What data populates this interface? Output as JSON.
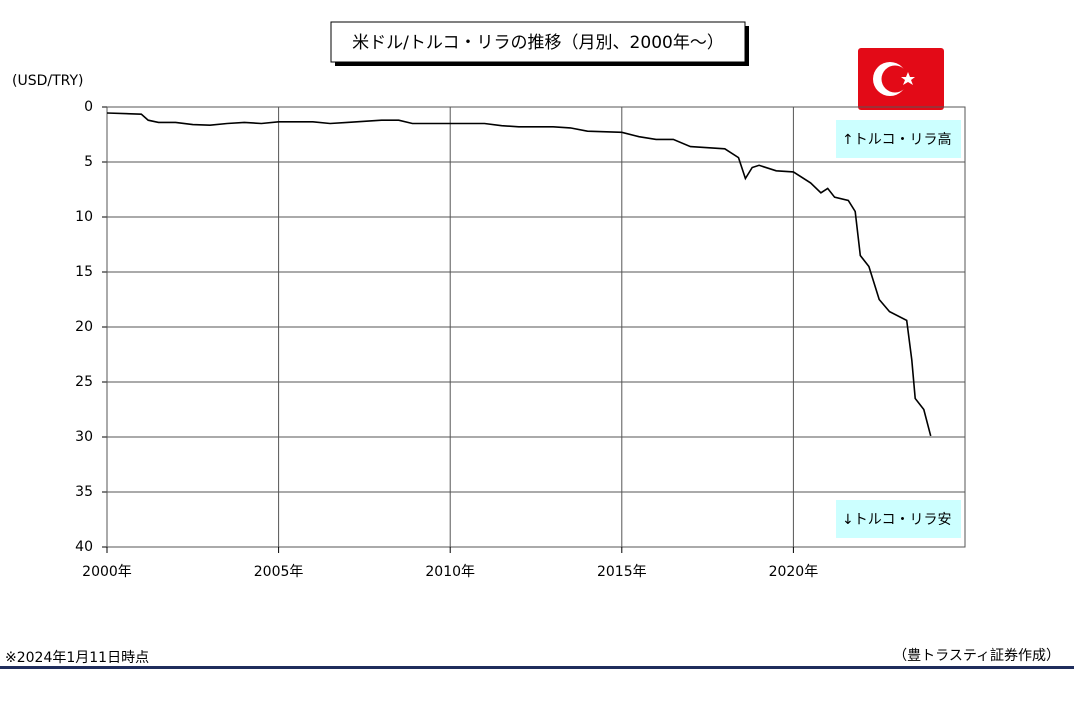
{
  "chart_data": {
    "type": "line",
    "title": "米ドル/トルコ・リラの推移（月別、2000年～）",
    "y_label": "(USD/TRY)",
    "annotations": [
      "↑トルコ・リラ高",
      "↓トルコ・リラ安"
    ],
    "footnote": "※2024年1月11日時点",
    "source": "（豊トラスティ証券作成）",
    "x": [
      2000.0,
      2001.0,
      2001.2,
      2001.5,
      2002.0,
      2002.5,
      2003.0,
      2003.5,
      2004.0,
      2004.5,
      2005.0,
      2006.0,
      2006.5,
      2007.0,
      2007.5,
      2008.0,
      2008.5,
      2008.9,
      2009.5,
      2010.0,
      2011.0,
      2011.5,
      2012.0,
      2013.0,
      2013.5,
      2014.0,
      2015.0,
      2015.5,
      2016.0,
      2016.5,
      2017.0,
      2018.0,
      2018.4,
      2018.6,
      2018.8,
      2019.0,
      2019.5,
      2020.0,
      2020.5,
      2020.8,
      2021.0,
      2021.2,
      2021.6,
      2021.8,
      2021.95,
      2022.2,
      2022.5,
      2022.8,
      2023.3,
      2023.45,
      2023.55,
      2023.8,
      2024.0
    ],
    "values": [
      0.55,
      0.65,
      1.2,
      1.4,
      1.4,
      1.6,
      1.65,
      1.5,
      1.4,
      1.5,
      1.35,
      1.35,
      1.5,
      1.4,
      1.3,
      1.2,
      1.2,
      1.5,
      1.5,
      1.5,
      1.5,
      1.7,
      1.8,
      1.8,
      1.9,
      2.2,
      2.3,
      2.7,
      2.95,
      2.95,
      3.6,
      3.8,
      4.6,
      6.5,
      5.5,
      5.3,
      5.8,
      5.9,
      6.9,
      7.8,
      7.4,
      8.2,
      8.5,
      9.5,
      13.5,
      14.5,
      17.5,
      18.6,
      19.4,
      23,
      26.5,
      27.5,
      29.9
    ],
    "color": "#000000",
    "xlim": [
      2000,
      2025
    ],
    "xticks": [
      {
        "value": 2000,
        "label": "2000年"
      },
      {
        "value": 2005,
        "label": "2005年"
      },
      {
        "value": 2010,
        "label": "2010年"
      },
      {
        "value": 2015,
        "label": "2015年"
      },
      {
        "value": 2020,
        "label": "2020年"
      }
    ],
    "ylim": [
      0,
      40
    ],
    "yticks": [
      0,
      5,
      10,
      15,
      20,
      25,
      30,
      35,
      40
    ],
    "y_reversed": true,
    "grid": true
  }
}
